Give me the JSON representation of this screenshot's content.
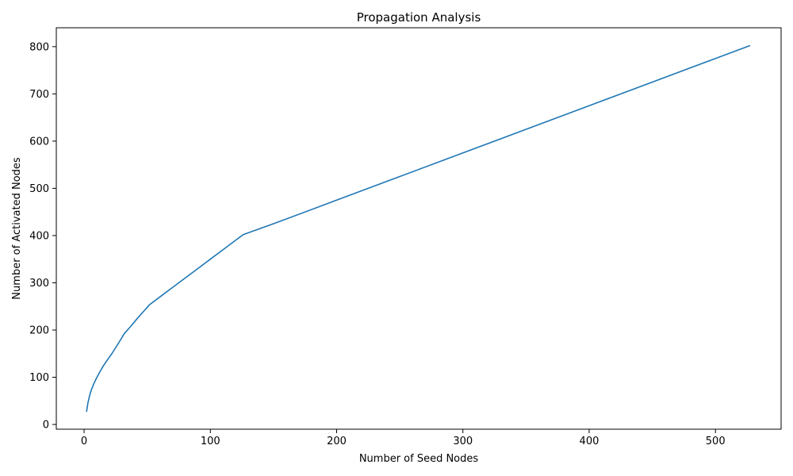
{
  "chart_data": {
    "type": "line",
    "title": "Propagation Analysis",
    "xlabel": "Number of Seed Nodes",
    "ylabel": "Number of Activated Nodes",
    "xlim": [
      -22,
      552
    ],
    "ylim": [
      -10,
      840
    ],
    "xticks": [
      0,
      100,
      200,
      300,
      400,
      500
    ],
    "yticks": [
      0,
      100,
      200,
      300,
      400,
      500,
      600,
      700,
      800
    ],
    "grid": false,
    "legend": "none",
    "series": [
      {
        "color": "#1f77b4",
        "x": [
          2,
          3,
          4,
          5,
          6,
          8,
          10,
          12,
          15,
          18,
          22,
          27,
          32,
          37,
          42,
          47,
          52,
          62,
          72,
          82,
          92,
          102,
          112,
          126,
          150,
          200,
          250,
          300,
          350,
          400,
          450,
          500,
          527
        ],
        "y": [
          28,
          45,
          57,
          67,
          75,
          88,
          99,
          109,
          123,
          135,
          150,
          171,
          193,
          208,
          224,
          239,
          254,
          274,
          294,
          314,
          334,
          354,
          374,
          402,
          425,
          475,
          525,
          575,
          625,
          675,
          725,
          775,
          802
        ]
      }
    ]
  }
}
